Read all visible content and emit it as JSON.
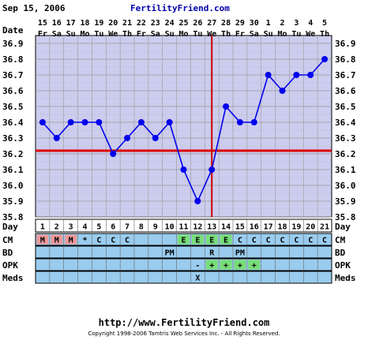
{
  "header": {
    "date_text": "Sep 15, 2006",
    "site_name": "FertilityFriend.com"
  },
  "colors": {
    "plot_bg": "#ccccee",
    "grid": "#999999",
    "line": "#0000ee",
    "coverline": "#dd0000",
    "ovulation_line": "#cc0000",
    "row_bg_blue": "#99ccee",
    "cell_menses": "#ee9999",
    "cell_egg": "#77dd77",
    "border": "#000000"
  },
  "row_labels": {
    "date": "Date",
    "day": "Day",
    "cm": "CM",
    "bd": "BD",
    "opk": "OPK",
    "meds": "Meds"
  },
  "chart_data": {
    "type": "line",
    "title": "",
    "dates": [
      "15",
      "16",
      "17",
      "18",
      "19",
      "20",
      "21",
      "22",
      "23",
      "24",
      "25",
      "26",
      "27",
      "28",
      "29",
      "30",
      "1",
      "2",
      "3",
      "4",
      "5"
    ],
    "weekdays": [
      "Fr",
      "Sa",
      "Su",
      "Mo",
      "Tu",
      "We",
      "Th",
      "Fr",
      "Sa",
      "Su",
      "Mo",
      "Tu",
      "We",
      "Th",
      "Fr",
      "Sa",
      "Su",
      "Mo",
      "Tu",
      "We",
      "Th"
    ],
    "cycle_days": [
      "1",
      "2",
      "3",
      "4",
      "5",
      "6",
      "7",
      "8",
      "9",
      "10",
      "11",
      "12",
      "13",
      "14",
      "15",
      "16",
      "17",
      "18",
      "19",
      "20",
      "21"
    ],
    "temperatures": [
      36.4,
      36.3,
      36.4,
      36.4,
      36.4,
      36.2,
      36.3,
      36.4,
      36.3,
      36.4,
      36.1,
      35.9,
      36.1,
      36.5,
      36.4,
      36.4,
      36.7,
      36.6,
      36.7,
      36.7,
      36.8
    ],
    "y_ticks": [
      "36.9",
      "36.8",
      "36.7",
      "36.6",
      "36.5",
      "36.4",
      "36.3",
      "36.2",
      "36.1",
      "36.0",
      "35.9",
      "35.8"
    ],
    "ylim": [
      35.8,
      36.9
    ],
    "coverline": 36.22,
    "ovulation_day": "13",
    "grid": true,
    "cm": [
      "M",
      "M",
      "M",
      "*",
      "C",
      "C",
      "C",
      "",
      "",
      "",
      "E",
      "E",
      "E",
      "E",
      "C",
      "C",
      "C",
      "C",
      "C",
      "C",
      "C"
    ],
    "cm_highlight": [
      "menses",
      "menses",
      "menses",
      "",
      "",
      "",
      "",
      "",
      "",
      "",
      "egg",
      "egg",
      "egg",
      "egg",
      "",
      "",
      "",
      "",
      "",
      "",
      ""
    ],
    "bd": [
      "",
      "",
      "",
      "",
      "",
      "",
      "",
      "",
      "",
      "PM",
      "",
      "",
      "R",
      "",
      "PM",
      "",
      "",
      "",
      "",
      "",
      ""
    ],
    "opk": [
      "",
      "",
      "",
      "",
      "",
      "",
      "",
      "",
      "",
      "",
      "",
      "-",
      "+",
      "+",
      "+",
      "+",
      "",
      "",
      "",
      "",
      ""
    ],
    "opk_highlight": [
      "",
      "",
      "",
      "",
      "",
      "",
      "",
      "",
      "",
      "",
      "",
      "",
      "egg",
      "egg",
      "egg",
      "egg",
      "",
      "",
      "",
      "",
      ""
    ],
    "meds": [
      "",
      "",
      "",
      "",
      "",
      "",
      "",
      "",
      "",
      "",
      "",
      "X",
      "",
      "",
      "",
      "",
      "",
      "",
      "",
      "",
      ""
    ]
  },
  "footer": {
    "url": "http://www.FertilityFriend.com",
    "copyright": "Copyright 1998-2006 Tamtris Web Services Inc. - All Rights Reserved."
  }
}
